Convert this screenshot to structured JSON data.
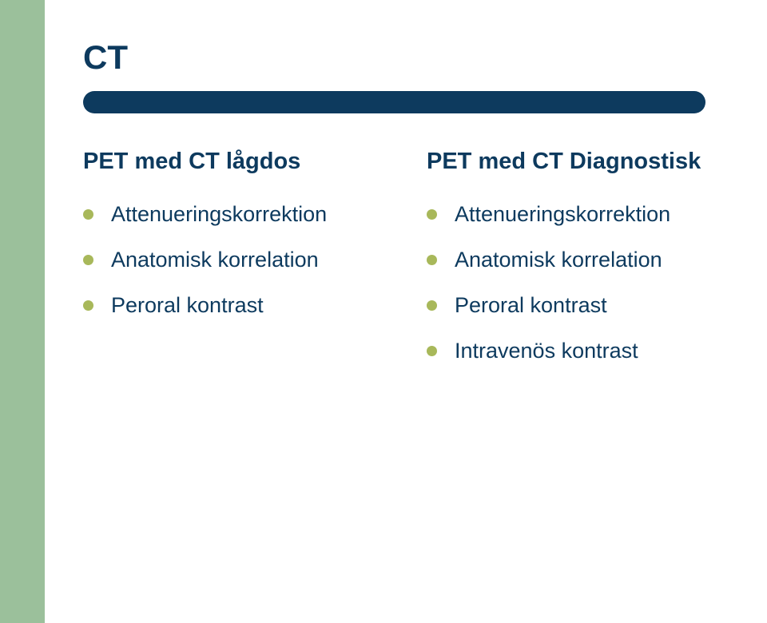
{
  "colors": {
    "sidebar": "#9bc09b",
    "navy": "#0d3a5e",
    "bullet": "#a8b85a",
    "text": "#0d3a5e",
    "background": "#ffffff"
  },
  "title": "CT",
  "left": {
    "heading": "PET med CT lågdos",
    "items": [
      "Attenueringskorrektion",
      "Anatomisk korrelation",
      "Peroral kontrast"
    ]
  },
  "right": {
    "heading": "PET med CT Diagnostisk",
    "items": [
      "Attenueringskorrektion",
      "Anatomisk korrelation",
      "Peroral kontrast",
      "Intravenös kontrast"
    ]
  }
}
